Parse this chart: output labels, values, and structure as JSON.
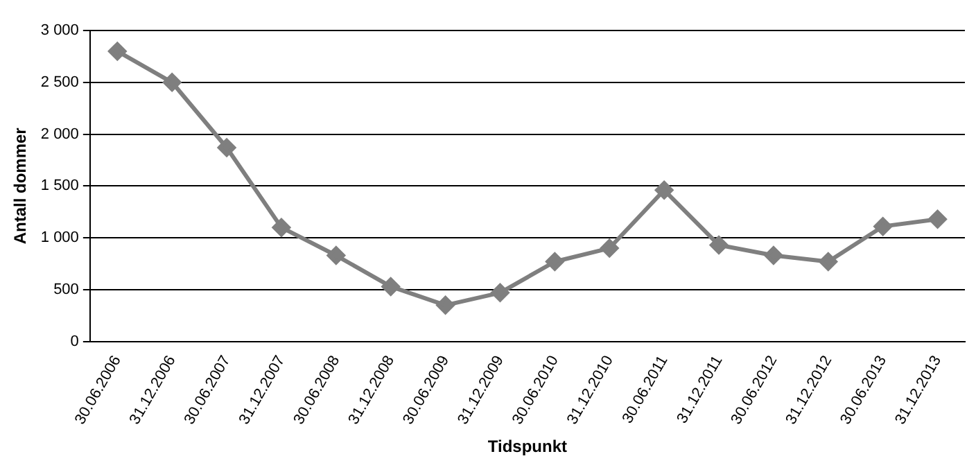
{
  "chart_data": {
    "type": "line",
    "xlabel": "Tidspunkt",
    "ylabel": "Antall dommer",
    "categories": [
      "30.06.2006",
      "31.12.2006",
      "30.06.2007",
      "31.12.2007",
      "30.06.2008",
      "31.12.2008",
      "30.06.2009",
      "31.12.2009",
      "30.06.2010",
      "31.12.2010",
      "30.06.2011",
      "31.12.2011",
      "30.06.2012",
      "31.12.2012",
      "30.06.2013",
      "31.12.2013"
    ],
    "series": [
      {
        "color": "#7f7f7f",
        "values": [
          2800,
          2500,
          1870,
          1100,
          830,
          530,
          350,
          470,
          770,
          900,
          1460,
          930,
          830,
          770,
          1110,
          1180
        ]
      }
    ],
    "ylim": [
      0,
      3000
    ],
    "yticks": [
      0,
      500,
      {
        "value": 1000,
        "label": "1 000"
      },
      {
        "value": 1500,
        "label": "1 500"
      },
      {
        "value": 2000,
        "label": "2 000"
      },
      {
        "value": 2500,
        "label": "2 500"
      },
      {
        "value": 3000,
        "label": "3 000"
      }
    ],
    "grid": "y",
    "legend": false,
    "marker": "diamond",
    "line_style": "solid"
  }
}
